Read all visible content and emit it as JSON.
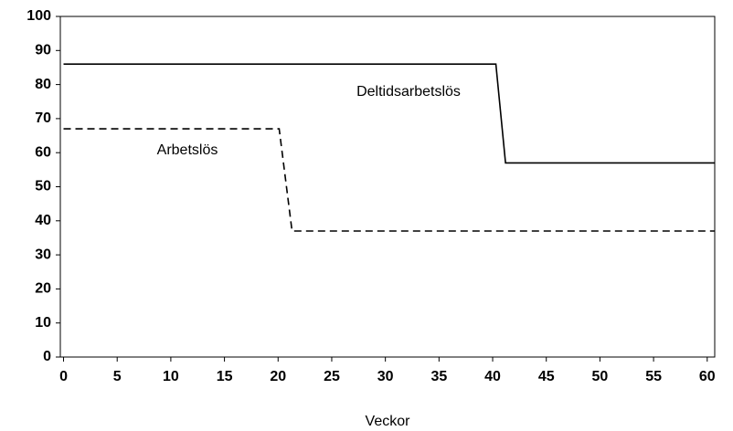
{
  "chart_data": {
    "type": "line",
    "x_label": "Veckor",
    "xlim": [
      -0.3,
      60.7
    ],
    "xticks": [
      0,
      5,
      10,
      15,
      20,
      25,
      30,
      35,
      40,
      45,
      50,
      55,
      60
    ],
    "ylim": [
      0,
      100
    ],
    "yticks": [
      0,
      10,
      20,
      30,
      40,
      50,
      60,
      70,
      80,
      90,
      100
    ],
    "grid": false,
    "series": [
      {
        "name": "Deltidsarbetslös",
        "color": "#000000",
        "dash": "solid",
        "x": [
          0,
          40.3,
          41.2,
          60.7
        ],
        "values": [
          86,
          86,
          57,
          57
        ]
      },
      {
        "name": "Arbetslös",
        "color": "#000000",
        "dash": "dashed",
        "x": [
          0,
          20.1,
          21.3,
          60.7
        ],
        "values": [
          67,
          67,
          37,
          37
        ]
      }
    ]
  }
}
